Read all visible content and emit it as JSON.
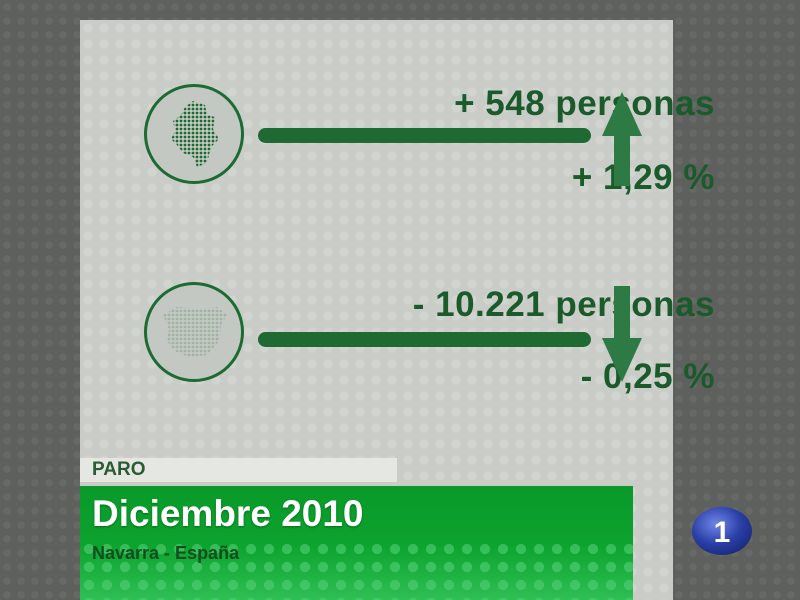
{
  "stats": [
    {
      "region": "Navarra",
      "people": "+ 548 personas",
      "percent": "+ 1,29 %",
      "trend": "up"
    },
    {
      "region": "España",
      "people": "- 10.221 personas",
      "percent": "- 0,25 %",
      "trend": "down"
    }
  ],
  "caption": {
    "category": "PARO",
    "title": "Diciembre 2010",
    "subtitle": "Navarra - España"
  },
  "channel_logo": {
    "text": "1"
  },
  "colors": {
    "dark_green": "#1f6a33",
    "text_green": "#1a5a2b",
    "bright_green": "#0ba22d",
    "logo_blue": "#2a3fa6"
  }
}
